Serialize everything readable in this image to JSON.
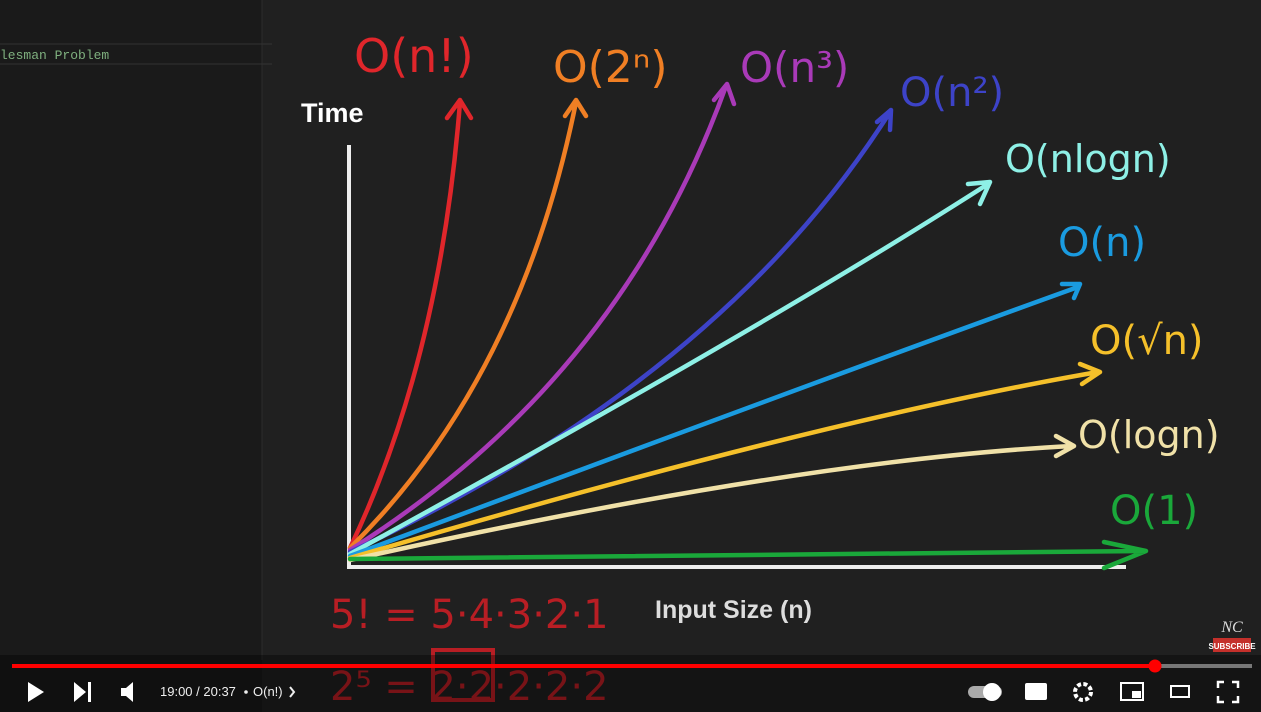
{
  "editor": {
    "tab_text": "lesman Problem"
  },
  "video": {
    "y_axis_label": "Time",
    "x_axis_label": "Input Size (n)",
    "complexities": [
      "O(n!)",
      "O(2ⁿ)",
      "O(n³)",
      "O(n²)",
      "O(nlogn)",
      "O(n)",
      "O(√n)",
      "O(logn)",
      "O(1)"
    ],
    "notes": [
      "5! = 5·4·3·2·1",
      "2⁵ = 2·2·2·2·2"
    ],
    "watermark": {
      "logo": "NC",
      "button": "SUBSCRIBE"
    }
  },
  "player": {
    "time": "19:00 / 20:37",
    "chapter": "O(n!)"
  }
}
